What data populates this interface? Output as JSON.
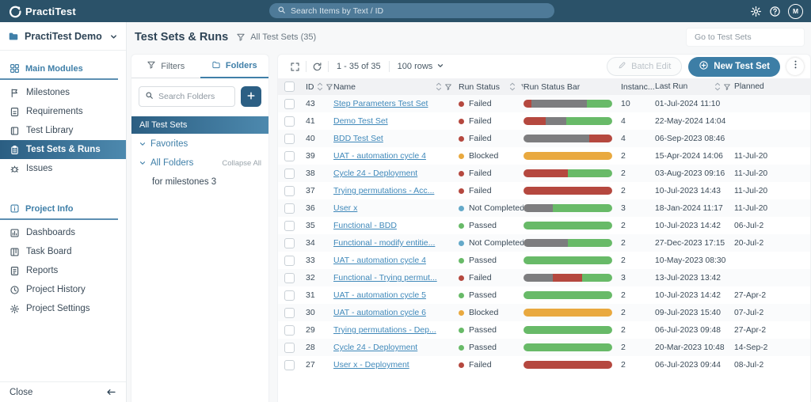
{
  "app": {
    "name": "PractiTest"
  },
  "topbar": {
    "search_placeholder": "Search Items by Text / ID",
    "avatar_initial": "M"
  },
  "project_selector": {
    "label": "PractiTest Demo"
  },
  "sidebar": {
    "sections": [
      {
        "label": "Main Modules",
        "icon": "grid-icon",
        "items": [
          {
            "label": "Milestones",
            "icon": "flag-icon",
            "active": false
          },
          {
            "label": "Requirements",
            "icon": "requirements-icon",
            "active": false
          },
          {
            "label": "Test Library",
            "icon": "library-icon",
            "active": false
          },
          {
            "label": "Test Sets & Runs",
            "icon": "test-sets-icon",
            "active": true
          },
          {
            "label": "Issues",
            "icon": "bug-icon",
            "active": false
          }
        ]
      },
      {
        "label": "Project Info",
        "icon": "info-icon",
        "items": [
          {
            "label": "Dashboards",
            "icon": "dashboard-icon",
            "active": false
          },
          {
            "label": "Task Board",
            "icon": "board-icon",
            "active": false
          },
          {
            "label": "Reports",
            "icon": "report-icon",
            "active": false
          },
          {
            "label": "Project History",
            "icon": "history-icon",
            "active": false
          },
          {
            "label": "Project Settings",
            "icon": "settings-icon",
            "active": false
          }
        ]
      }
    ],
    "close_label": "Close"
  },
  "page": {
    "title": "Test Sets & Runs",
    "subtitle": "All Test Sets (35)",
    "goto_label": "Go to Test Sets"
  },
  "folders_panel": {
    "tabs": [
      {
        "label": "Filters",
        "icon": "filter-icon",
        "active": false
      },
      {
        "label": "Folders",
        "icon": "folder-icon",
        "active": true
      }
    ],
    "search_placeholder": "Search Folders",
    "selected_folder": "All Test Sets",
    "tree": [
      {
        "label": "Favorites",
        "type": "group",
        "action": ""
      },
      {
        "label": "All Folders",
        "type": "group",
        "action": "Collapse All"
      },
      {
        "label": "for milestones 3",
        "type": "leaf",
        "action": ""
      }
    ]
  },
  "toolbar": {
    "range": "1 - 35 of 35",
    "rows_per_page": "100 rows",
    "batch_edit_label": "Batch Edit",
    "new_test_set_label": "New Test Set"
  },
  "table": {
    "columns": [
      {
        "label": "ID",
        "cls": "c-id",
        "sort": true,
        "filter": true,
        "spread": false
      },
      {
        "label": "Name",
        "cls": "c-name",
        "sort": true,
        "filter": true,
        "spread": true
      },
      {
        "label": "Run Status",
        "cls": "c-status",
        "sort": true,
        "filter": true,
        "spread": true
      },
      {
        "label": "Run Status Bar",
        "cls": "c-bar",
        "sort": false,
        "filter": false,
        "spread": false
      },
      {
        "label": "Instanc...",
        "cls": "c-inst",
        "sort": true,
        "filter": true,
        "spread": false
      },
      {
        "label": "Last Run",
        "cls": "c-last",
        "sort": true,
        "filter": true,
        "spread": true
      },
      {
        "label": "Planned",
        "cls": "c-plan",
        "sort": false,
        "filter": false,
        "spread": false
      }
    ],
    "rows": [
      {
        "id": "43",
        "name": "Step Parameters Test Set",
        "status": "Failed",
        "instances": "10",
        "last_run": "01-Jul-2024 11:10",
        "planned": "",
        "bar": [
          [
            "failed",
            9
          ],
          [
            "no_run",
            62
          ],
          [
            "passed",
            29
          ]
        ]
      },
      {
        "id": "41",
        "name": "Demo Test Set",
        "status": "Failed",
        "instances": "4",
        "last_run": "22-May-2024 14:04",
        "planned": "",
        "bar": [
          [
            "failed",
            25
          ],
          [
            "no_run",
            23
          ],
          [
            "passed",
            52
          ]
        ]
      },
      {
        "id": "40",
        "name": "BDD Test Set",
        "status": "Failed",
        "instances": "4",
        "last_run": "06-Sep-2023 08:46",
        "planned": "",
        "bar": [
          [
            "no_run",
            74
          ],
          [
            "failed",
            26
          ]
        ]
      },
      {
        "id": "39",
        "name": "UAT - automation cycle 4",
        "status": "Blocked",
        "instances": "2",
        "last_run": "15-Apr-2024 14:06",
        "planned": "11-Jul-20",
        "bar": [
          [
            "blocked",
            100
          ]
        ]
      },
      {
        "id": "38",
        "name": "Cycle 24 - Deployment",
        "status": "Failed",
        "instances": "2",
        "last_run": "03-Aug-2023 09:16",
        "planned": "11-Jul-20",
        "bar": [
          [
            "failed",
            50
          ],
          [
            "passed",
            50
          ]
        ]
      },
      {
        "id": "37",
        "name": "Trying permutations - Acc...",
        "status": "Failed",
        "instances": "2",
        "last_run": "10-Jul-2023 14:43",
        "planned": "11-Jul-20",
        "bar": [
          [
            "failed",
            100
          ]
        ]
      },
      {
        "id": "36",
        "name": "User x",
        "status": "Not Completed",
        "instances": "3",
        "last_run": "18-Jan-2024 11:17",
        "planned": "11-Jul-20",
        "bar": [
          [
            "no_run",
            33
          ],
          [
            "passed",
            67
          ]
        ]
      },
      {
        "id": "35",
        "name": "Functional - BDD",
        "status": "Passed",
        "instances": "2",
        "last_run": "10-Jul-2023 14:42",
        "planned": "06-Jul-2",
        "bar": [
          [
            "passed",
            100
          ]
        ]
      },
      {
        "id": "34",
        "name": "Functional - modify entitie...",
        "status": "Not Completed",
        "instances": "2",
        "last_run": "27-Dec-2023 17:15",
        "planned": "20-Jul-2",
        "bar": [
          [
            "no_run",
            50
          ],
          [
            "passed",
            50
          ]
        ]
      },
      {
        "id": "33",
        "name": "UAT - automation cycle 4",
        "status": "Passed",
        "instances": "2",
        "last_run": "10-May-2023 08:30",
        "planned": "",
        "bar": [
          [
            "passed",
            100
          ]
        ]
      },
      {
        "id": "32",
        "name": "Functional - Trying permut...",
        "status": "Failed",
        "instances": "3",
        "last_run": "13-Jul-2023 13:42",
        "planned": "",
        "bar": [
          [
            "no_run",
            33
          ],
          [
            "failed",
            33
          ],
          [
            "passed",
            34
          ]
        ]
      },
      {
        "id": "31",
        "name": "UAT - automation cycle 5",
        "status": "Passed",
        "instances": "2",
        "last_run": "10-Jul-2023 14:42",
        "planned": "27-Apr-2",
        "bar": [
          [
            "passed",
            100
          ]
        ]
      },
      {
        "id": "30",
        "name": "UAT - automation cycle 6",
        "status": "Blocked",
        "instances": "2",
        "last_run": "09-Jul-2023 15:40",
        "planned": "07-Jul-2",
        "bar": [
          [
            "blocked",
            100
          ]
        ]
      },
      {
        "id": "29",
        "name": "Trying permutations - Dep...",
        "status": "Passed",
        "instances": "2",
        "last_run": "06-Jul-2023 09:48",
        "planned": "27-Apr-2",
        "bar": [
          [
            "passed",
            100
          ]
        ]
      },
      {
        "id": "28",
        "name": "Cycle 24 - Deployment",
        "status": "Passed",
        "instances": "2",
        "last_run": "20-Mar-2023 10:48",
        "planned": "14-Sep-2",
        "bar": [
          [
            "passed",
            100
          ]
        ]
      },
      {
        "id": "27",
        "name": "User x - Deployment",
        "status": "Failed",
        "instances": "2",
        "last_run": "06-Jul-2023 09:44",
        "planned": "08-Jul-2",
        "bar": [
          [
            "failed",
            100
          ]
        ]
      }
    ]
  },
  "colors": {
    "accent": "#3d7ea6",
    "failed": "#b5483f",
    "blocked": "#e9a93f",
    "passed": "#68ba68",
    "not_completed": "#64a9c9",
    "no_run": "#7d7d7f"
  },
  "status_color_keys": {
    "Failed": "failed",
    "Blocked": "blocked",
    "Passed": "passed",
    "Not Completed": "not_completed"
  }
}
